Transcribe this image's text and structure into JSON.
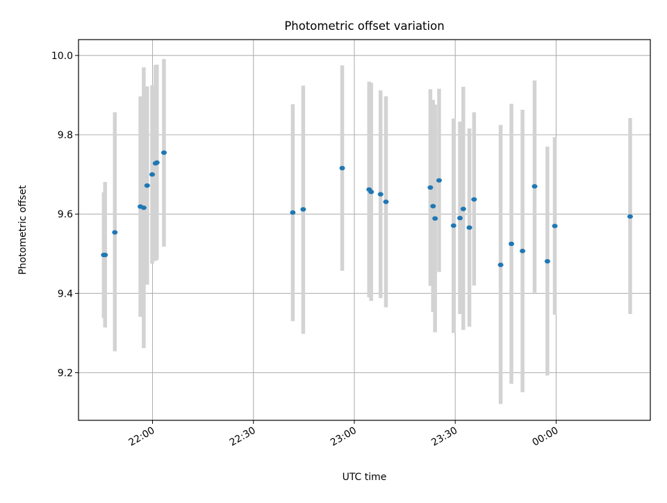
{
  "chart_data": {
    "type": "scatter",
    "title": "Photometric offset variation",
    "xlabel": "UTC time",
    "ylabel": "Photometric offset",
    "x_unit": "minutes relative to 22:00 UTC",
    "xlim": [
      -22.0,
      148.0
    ],
    "ylim": [
      9.08,
      10.04
    ],
    "x_ticks": [
      {
        "value": 0,
        "label": "22:00"
      },
      {
        "value": 30,
        "label": "22:30"
      },
      {
        "value": 60,
        "label": "23:00"
      },
      {
        "value": 90,
        "label": "23:30"
      },
      {
        "value": 120,
        "label": "00:00"
      }
    ],
    "y_ticks": [
      {
        "value": 9.2,
        "label": "9.2"
      },
      {
        "value": 9.4,
        "label": "9.4"
      },
      {
        "value": 9.6,
        "label": "9.6"
      },
      {
        "value": 9.8,
        "label": "9.8"
      },
      {
        "value": 10.0,
        "label": "10.0"
      }
    ],
    "grid": true,
    "point_color": "#1f77b4",
    "errorbar_color": "#d3d3d3",
    "points": [
      {
        "x": -14.5,
        "y": 9.497,
        "lo": 9.338,
        "hi": 9.655
      },
      {
        "x": -14.1,
        "y": 9.497,
        "lo": 9.314,
        "hi": 9.681
      },
      {
        "x": -11.2,
        "y": 9.554,
        "lo": 9.254,
        "hi": 9.857
      },
      {
        "x": -3.6,
        "y": 9.619,
        "lo": 9.341,
        "hi": 9.897
      },
      {
        "x": -2.6,
        "y": 9.616,
        "lo": 9.262,
        "hi": 9.97
      },
      {
        "x": -1.6,
        "y": 9.672,
        "lo": 9.422,
        "hi": 9.922
      },
      {
        "x": -0.1,
        "y": 9.7,
        "lo": 9.475,
        "hi": 9.925
      },
      {
        "x": 0.9,
        "y": 9.728,
        "lo": 9.482,
        "hi": 9.976
      },
      {
        "x": 1.3,
        "y": 9.73,
        "lo": 9.485,
        "hi": 9.977
      },
      {
        "x": 3.4,
        "y": 9.755,
        "lo": 9.518,
        "hi": 9.991
      },
      {
        "x": 41.7,
        "y": 9.604,
        "lo": 9.33,
        "hi": 9.877
      },
      {
        "x": 44.8,
        "y": 9.612,
        "lo": 9.298,
        "hi": 9.924
      },
      {
        "x": 56.4,
        "y": 9.716,
        "lo": 9.457,
        "hi": 9.975
      },
      {
        "x": 64.4,
        "y": 9.662,
        "lo": 9.39,
        "hi": 9.934
      },
      {
        "x": 65.0,
        "y": 9.656,
        "lo": 9.381,
        "hi": 9.931
      },
      {
        "x": 67.8,
        "y": 9.65,
        "lo": 9.388,
        "hi": 9.912
      },
      {
        "x": 69.4,
        "y": 9.631,
        "lo": 9.365,
        "hi": 9.897
      },
      {
        "x": 82.6,
        "y": 9.667,
        "lo": 9.419,
        "hi": 9.915
      },
      {
        "x": 83.4,
        "y": 9.62,
        "lo": 9.353,
        "hi": 9.888
      },
      {
        "x": 84.0,
        "y": 9.589,
        "lo": 9.302,
        "hi": 9.876
      },
      {
        "x": 85.2,
        "y": 9.685,
        "lo": 9.454,
        "hi": 9.916
      },
      {
        "x": 89.5,
        "y": 9.571,
        "lo": 9.3,
        "hi": 9.841
      },
      {
        "x": 91.4,
        "y": 9.59,
        "lo": 9.348,
        "hi": 9.833
      },
      {
        "x": 92.4,
        "y": 9.613,
        "lo": 9.308,
        "hi": 9.921
      },
      {
        "x": 94.2,
        "y": 9.566,
        "lo": 9.316,
        "hi": 9.816
      },
      {
        "x": 95.6,
        "y": 9.637,
        "lo": 9.42,
        "hi": 9.857
      },
      {
        "x": 103.5,
        "y": 9.472,
        "lo": 9.121,
        "hi": 9.825
      },
      {
        "x": 106.7,
        "y": 9.525,
        "lo": 9.172,
        "hi": 9.878
      },
      {
        "x": 110.0,
        "y": 9.507,
        "lo": 9.151,
        "hi": 9.863
      },
      {
        "x": 113.6,
        "y": 9.67,
        "lo": 9.402,
        "hi": 9.937
      },
      {
        "x": 117.4,
        "y": 9.481,
        "lo": 9.193,
        "hi": 9.77
      },
      {
        "x": 119.6,
        "y": 9.57,
        "lo": 9.346,
        "hi": 9.794
      },
      {
        "x": 142.0,
        "y": 9.594,
        "lo": 9.348,
        "hi": 9.842
      }
    ]
  }
}
